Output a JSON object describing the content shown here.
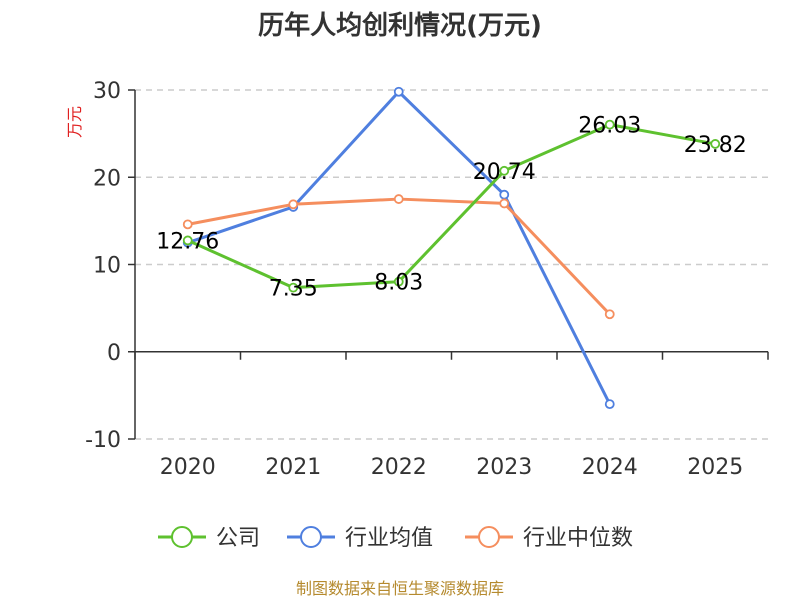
{
  "chart_data": {
    "type": "line",
    "title": "历年人均创利情况(万元)",
    "ylabel": "万元",
    "categories": [
      "2020",
      "2021",
      "2022",
      "2023",
      "2024",
      "2025"
    ],
    "ylim": [
      -10,
      30
    ],
    "yticks": [
      -10,
      0,
      10,
      20,
      30
    ],
    "grid": true,
    "legend_position": "bottom",
    "series": [
      {
        "name": "公司",
        "color": "#5ec12f",
        "values": [
          12.76,
          7.35,
          8.03,
          20.74,
          26.03,
          23.82
        ],
        "labels": [
          "12.76",
          "7.35",
          "8.03",
          "20.74",
          "26.03",
          "23.82"
        ]
      },
      {
        "name": "行业均值",
        "color": "#4f7fdf",
        "values": [
          12.5,
          16.6,
          29.8,
          18.0,
          -6.0,
          null
        ]
      },
      {
        "name": "行业中位数",
        "color": "#f58e5e",
        "values": [
          14.6,
          16.9,
          17.5,
          17.0,
          4.3,
          null
        ]
      }
    ]
  },
  "source": "制图数据来自恒生聚源数据库"
}
